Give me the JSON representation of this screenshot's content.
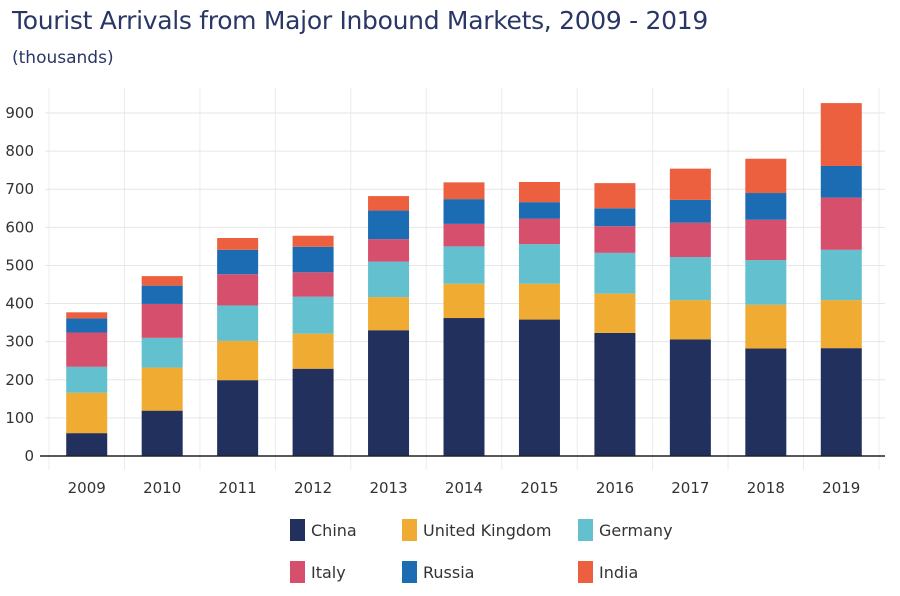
{
  "title": "Tourist Arrivals from Major Inbound Markets, 2009 - 2019",
  "subtitle": "(thousands)",
  "chart_data": {
    "type": "bar",
    "stacked": true,
    "categories": [
      "2009",
      "2010",
      "2011",
      "2012",
      "2013",
      "2014",
      "2015",
      "2016",
      "2017",
      "2018",
      "2019"
    ],
    "ylim": [
      0,
      900
    ],
    "yticks": [
      0,
      100,
      200,
      300,
      400,
      500,
      600,
      700,
      800,
      900
    ],
    "grid": true,
    "legend_position": "bottom",
    "series": [
      {
        "name": "China",
        "color": "#22305e",
        "values": [
          60,
          119,
          199,
          229,
          330,
          362,
          358,
          323,
          306,
          282,
          283
        ]
      },
      {
        "name": "United Kingdom",
        "color": "#f0ab32",
        "values": [
          106,
          113,
          103,
          92,
          87,
          90,
          94,
          103,
          103,
          115,
          126
        ]
      },
      {
        "name": "Germany",
        "color": "#62c0cf",
        "values": [
          68,
          78,
          93,
          97,
          93,
          98,
          104,
          107,
          113,
          117,
          132
        ]
      },
      {
        "name": "Italy",
        "color": "#d6506e",
        "values": [
          90,
          89,
          82,
          64,
          59,
          59,
          67,
          70,
          90,
          106,
          137
        ]
      },
      {
        "name": "Russia",
        "color": "#1b6cb3",
        "values": [
          37,
          48,
          64,
          67,
          75,
          65,
          43,
          47,
          60,
          70,
          83
        ]
      },
      {
        "name": "India",
        "color": "#ec6040",
        "values": [
          16,
          25,
          31,
          29,
          38,
          44,
          53,
          66,
          82,
          90,
          165
        ]
      }
    ]
  }
}
